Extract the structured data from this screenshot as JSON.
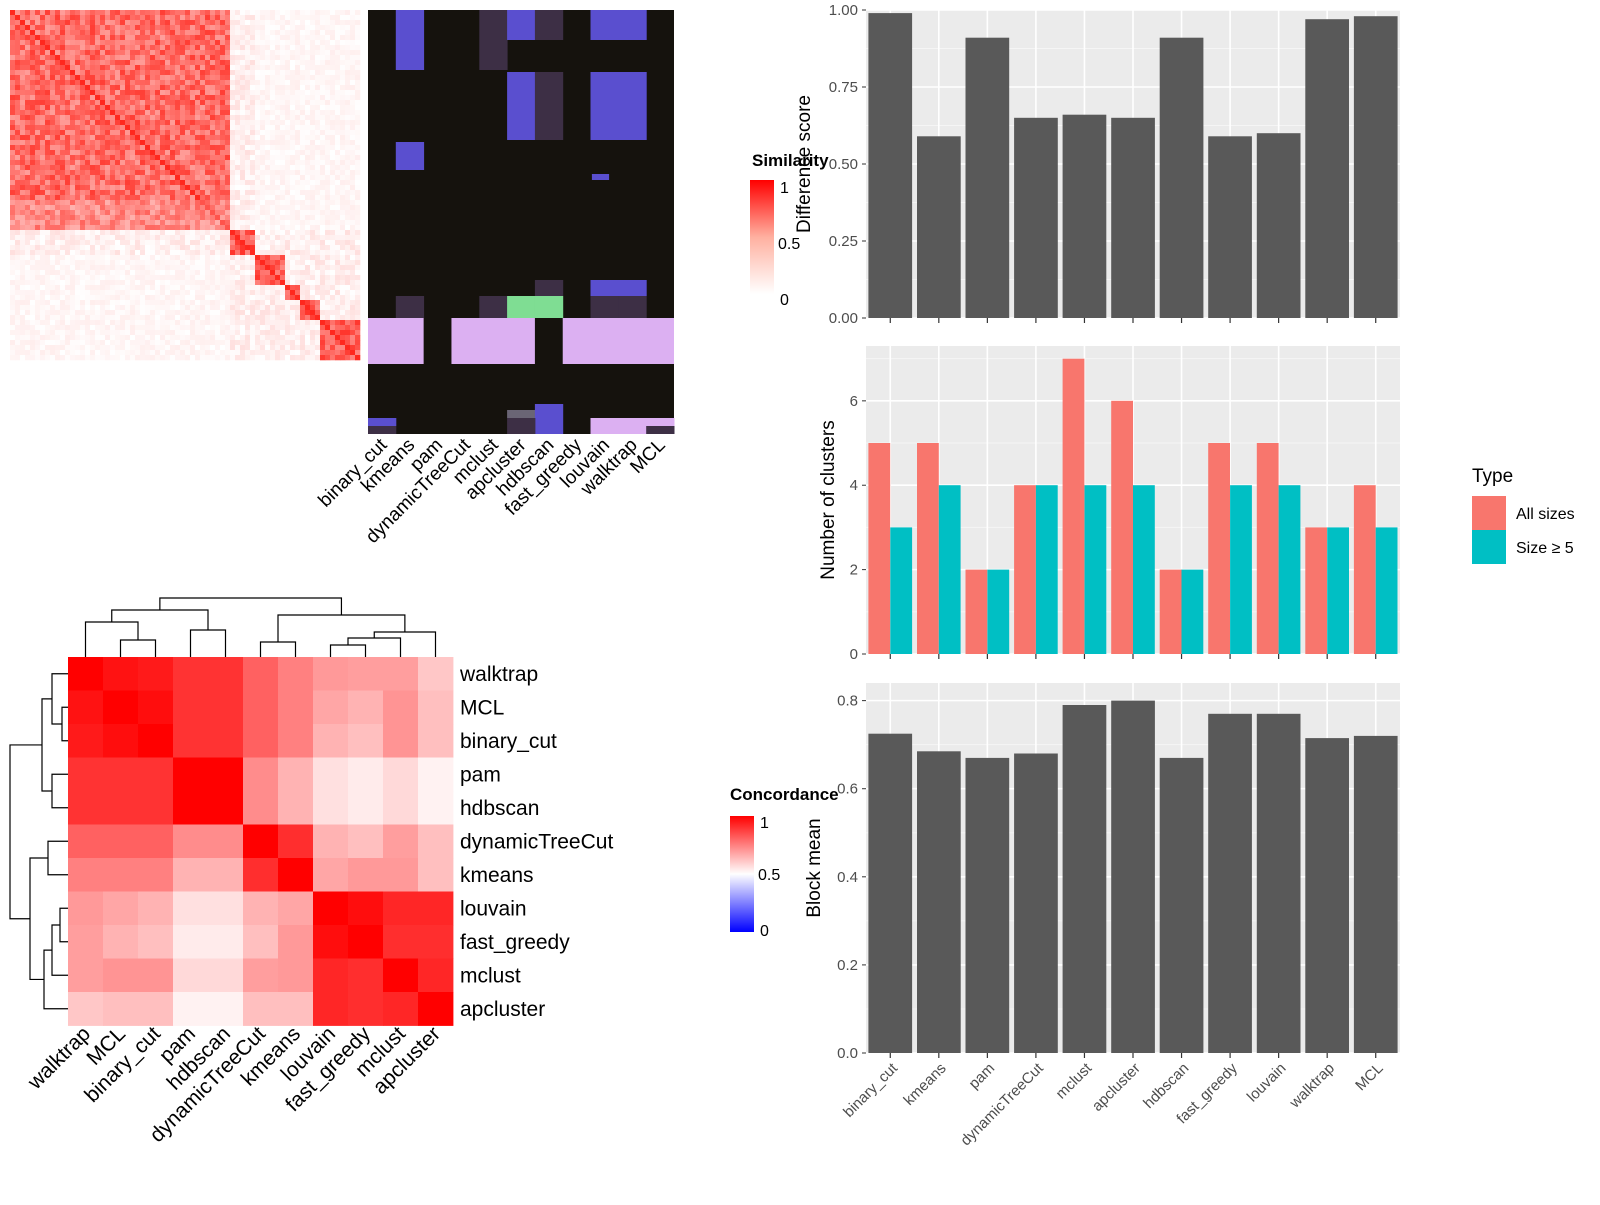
{
  "methods_bar": [
    "binary_cut",
    "kmeans",
    "pam",
    "dynamicTreeCut",
    "mclust",
    "apcluster",
    "hdbscan",
    "fast_greedy",
    "louvain",
    "walktrap",
    "MCL"
  ],
  "membership": {
    "columns": [
      "binary_cut",
      "kmeans",
      "pam",
      "dynamicTreeCut",
      "mclust",
      "apcluster",
      "hdbscan",
      "fast_greedy",
      "louvain",
      "walktrap",
      "MCL"
    ],
    "legend_title": "Similarity",
    "legend_ticks": [
      "1",
      "0.5",
      "0"
    ],
    "colors": {
      "background": "#15120d",
      "blue": "#5a4fcf",
      "dark_purple": "#3d2f45",
      "green": "#7fdd93",
      "lavender": "#dcb0f2",
      "grey": "#6a6575"
    }
  },
  "concordance": {
    "rows": [
      "walktrap",
      "MCL",
      "binary_cut",
      "pam",
      "hdbscan",
      "dynamicTreeCut",
      "kmeans",
      "louvain",
      "fast_greedy",
      "mclust",
      "apcluster"
    ],
    "values": [
      [
        1.0,
        0.93,
        0.9,
        0.8,
        0.8,
        0.62,
        0.5,
        0.4,
        0.38,
        0.38,
        0.22
      ],
      [
        0.93,
        1.0,
        0.95,
        0.8,
        0.8,
        0.62,
        0.5,
        0.35,
        0.3,
        0.42,
        0.25
      ],
      [
        0.9,
        0.95,
        1.0,
        0.8,
        0.8,
        0.62,
        0.5,
        0.3,
        0.25,
        0.42,
        0.25
      ],
      [
        0.8,
        0.8,
        0.8,
        1.0,
        1.0,
        0.45,
        0.3,
        0.12,
        0.08,
        0.15,
        0.05
      ],
      [
        0.8,
        0.8,
        0.8,
        1.0,
        1.0,
        0.45,
        0.3,
        0.12,
        0.08,
        0.15,
        0.05
      ],
      [
        0.62,
        0.62,
        0.62,
        0.45,
        0.45,
        1.0,
        0.82,
        0.3,
        0.25,
        0.38,
        0.25
      ],
      [
        0.5,
        0.5,
        0.5,
        0.3,
        0.3,
        0.82,
        1.0,
        0.35,
        0.4,
        0.4,
        0.25
      ],
      [
        0.4,
        0.35,
        0.3,
        0.12,
        0.12,
        0.3,
        0.35,
        1.0,
        0.95,
        0.85,
        0.85
      ],
      [
        0.38,
        0.3,
        0.25,
        0.08,
        0.08,
        0.25,
        0.4,
        0.95,
        1.0,
        0.82,
        0.82
      ],
      [
        0.38,
        0.42,
        0.42,
        0.15,
        0.15,
        0.38,
        0.4,
        0.85,
        0.82,
        1.0,
        0.85
      ],
      [
        0.22,
        0.25,
        0.25,
        0.05,
        0.05,
        0.25,
        0.25,
        0.85,
        0.82,
        0.85,
        1.0
      ]
    ],
    "legend_title": "Concordance",
    "legend_ticks": [
      "1",
      "0.5",
      "0"
    ],
    "colors": {
      "high": "#ff0000",
      "mid": "#ffffff",
      "low": "#0000ff"
    }
  },
  "chart_data": [
    {
      "type": "bar",
      "categories": [
        "binary_cut",
        "kmeans",
        "pam",
        "dynamicTreeCut",
        "mclust",
        "apcluster",
        "hdbscan",
        "fast_greedy",
        "louvain",
        "walktrap",
        "MCL"
      ],
      "values": [
        0.99,
        0.59,
        0.91,
        0.65,
        0.66,
        0.65,
        0.91,
        0.59,
        0.6,
        0.97,
        0.98
      ],
      "ylabel": "Difference score",
      "ylim": [
        0,
        1.0
      ],
      "yticks": [
        "0.00",
        "0.25",
        "0.50",
        "0.75",
        "1.00"
      ],
      "color": "#595959"
    },
    {
      "type": "bar",
      "categories": [
        "binary_cut",
        "kmeans",
        "pam",
        "dynamicTreeCut",
        "mclust",
        "apcluster",
        "hdbscan",
        "fast_greedy",
        "louvain",
        "walktrap",
        "MCL"
      ],
      "series": [
        {
          "name": "All sizes",
          "values": [
            5,
            5,
            2,
            4,
            7,
            6,
            2,
            5,
            5,
            3,
            4
          ],
          "color": "#f8766d"
        },
        {
          "name": "Size ≥ 5",
          "values": [
            3,
            4,
            2,
            4,
            4,
            4,
            2,
            4,
            4,
            3,
            3
          ],
          "color": "#00bfc4"
        }
      ],
      "ylabel": "Number of clusters",
      "legend_title": "Type",
      "ylim": [
        0,
        7.3
      ],
      "yticks": [
        "0",
        "2",
        "4",
        "6"
      ]
    },
    {
      "type": "bar",
      "categories": [
        "binary_cut",
        "kmeans",
        "pam",
        "dynamicTreeCut",
        "mclust",
        "apcluster",
        "hdbscan",
        "fast_greedy",
        "louvain",
        "walktrap",
        "MCL"
      ],
      "values": [
        0.725,
        0.685,
        0.67,
        0.68,
        0.79,
        0.8,
        0.67,
        0.77,
        0.77,
        0.715,
        0.72
      ],
      "ylabel": "Block mean",
      "ylim": [
        0,
        0.84
      ],
      "yticks": [
        "0.0",
        "0.2",
        "0.4",
        "0.6",
        "0.8"
      ],
      "color": "#595959"
    }
  ]
}
